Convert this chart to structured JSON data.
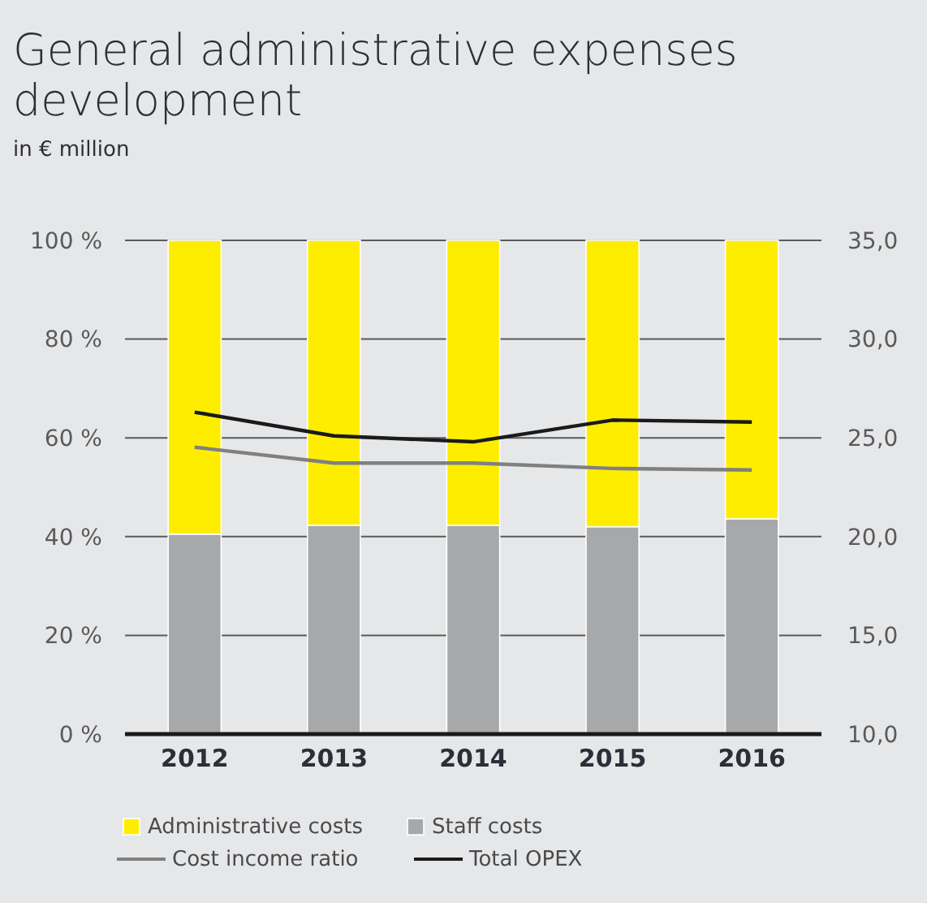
{
  "chart_data": {
    "type": "bar",
    "title": "General administrative expenses development",
    "subtitle": "in € million",
    "categories": [
      "2012",
      "2013",
      "2014",
      "2015",
      "2016"
    ],
    "stacked": true,
    "series": [
      {
        "name": "Staff costs",
        "color": "#a7a8aa",
        "values": [
          40.5,
          42.3,
          42.3,
          42.0,
          43.6
        ]
      },
      {
        "name": "Administrative costs",
        "color": "#ffed00",
        "values": [
          59.5,
          57.7,
          57.7,
          58.0,
          56.4
        ]
      },
      {
        "name": "Cost income ratio",
        "type": "line",
        "color": "#808080",
        "values": [
          58.1,
          54.9,
          54.9,
          53.8,
          53.5
        ]
      },
      {
        "name": "Total OPEX",
        "type": "line",
        "axis": "y2",
        "color": "#1a1a1a",
        "values": [
          26.3,
          25.1,
          24.8,
          25.9,
          25.8
        ]
      }
    ],
    "ylim": [
      0,
      100
    ],
    "yticks": [
      {
        "value": 0,
        "label": "0 %"
      },
      {
        "value": 20,
        "label": "20 %"
      },
      {
        "value": 40,
        "label": "40 %"
      },
      {
        "value": 60,
        "label": "60 %"
      },
      {
        "value": 80,
        "label": "80 %"
      },
      {
        "value": 100,
        "label": "100 %"
      }
    ],
    "y2lim": [
      10,
      35
    ],
    "y2ticks": [
      {
        "value": 10,
        "label": "10,0"
      },
      {
        "value": 15,
        "label": "15,0"
      },
      {
        "value": 20,
        "label": "20,0"
      },
      {
        "value": 25,
        "label": "25,0"
      },
      {
        "value": 30,
        "label": "30,0"
      },
      {
        "value": 35,
        "label": "35,0"
      }
    ],
    "grid": "y",
    "legend": "bottom"
  }
}
